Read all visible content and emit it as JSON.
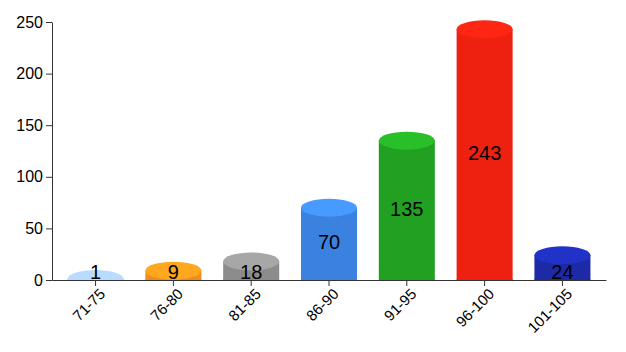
{
  "chart_data": {
    "type": "bar",
    "categories": [
      "71-75",
      "76-80",
      "81-85",
      "86-90",
      "91-95",
      "96-100",
      "101-105"
    ],
    "values": [
      1,
      9,
      18,
      70,
      135,
      243,
      24
    ],
    "colors": [
      "#9bb7dc",
      "#f08c1a",
      "#8c8c8c",
      "#3b82e0",
      "#22a022",
      "#ee2010",
      "#1c2aa8"
    ],
    "ylim": [
      0,
      250
    ],
    "yticks": [
      0,
      50,
      100,
      150,
      200,
      250
    ],
    "grid": false,
    "data_labels": true
  }
}
